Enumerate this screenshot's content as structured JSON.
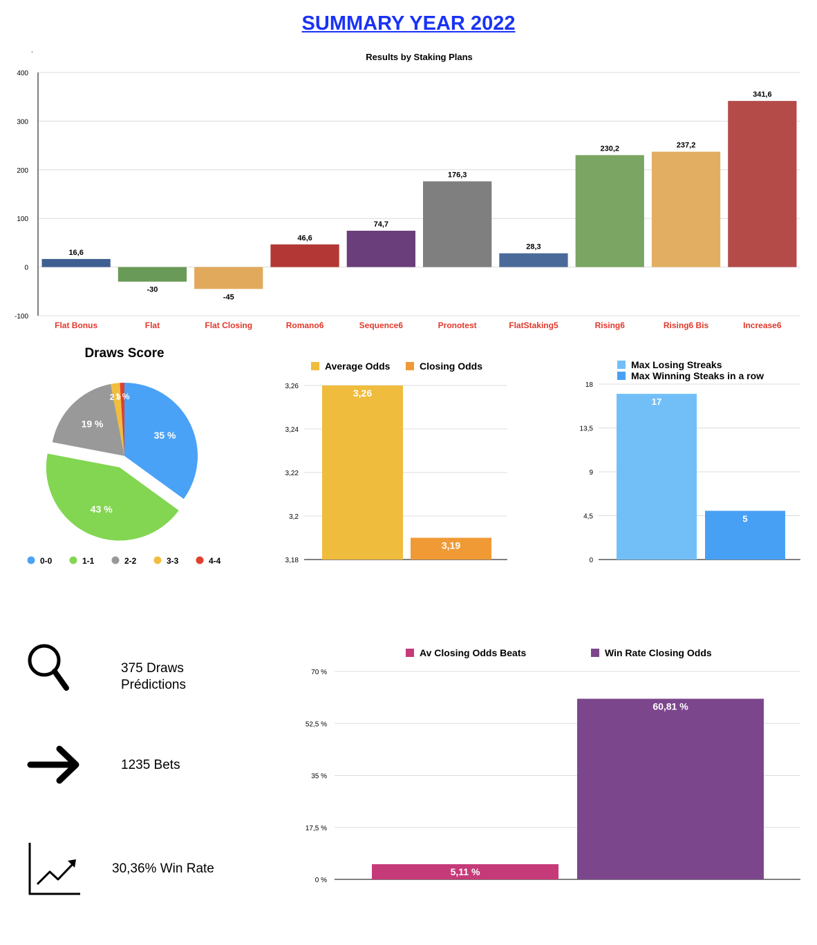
{
  "page": {
    "title": "SUMMARY YEAR 2022",
    "dot": "."
  },
  "stats": {
    "predictions_line1": "375 Draws",
    "predictions_line2": "Prédictions",
    "bets": "1235 Bets",
    "win_rate": "30,36% Win Rate",
    "icons": [
      "magnifier-icon",
      "arrow-right-icon",
      "line-chart-icon"
    ]
  },
  "chart_data": [
    {
      "id": "staking",
      "type": "bar",
      "title": "Results by Staking Plans",
      "categories": [
        "Flat Bonus",
        "Flat",
        "Flat Closing",
        "Romano6",
        "Sequence6",
        "Pronotest",
        "FlatStaking5",
        "Rising6",
        "Rising6 Bis",
        "Increase6"
      ],
      "values": [
        16.6,
        -30,
        -45,
        46.6,
        74.7,
        176.3,
        28.3,
        230.2,
        237.2,
        341.6
      ],
      "labels": [
        "16,6",
        "-30",
        "-45",
        "46,6",
        "74,7",
        "176,3",
        "28,3",
        "230,2",
        "237,2",
        "341,6"
      ],
      "colors": [
        "#3f5f92",
        "#6a9a57",
        "#e1a95b",
        "#b33835",
        "#6a3e7a",
        "#7f7f7f",
        "#4a6a9a",
        "#7ba563",
        "#e2af62",
        "#b44b49"
      ],
      "ylim": [
        -100,
        400
      ],
      "yticks": [
        "-100",
        "0",
        "100",
        "200",
        "300",
        "400"
      ],
      "ytick_values": [
        -100,
        0,
        100,
        200,
        300,
        400
      ],
      "category_label_color": "#e0382b",
      "grid": true
    },
    {
      "id": "draws",
      "type": "pie",
      "title": "Draws Score",
      "slices": [
        {
          "name": "0-0",
          "value": 35,
          "label": "35 %",
          "color": "#4aa2f6",
          "exploded": false
        },
        {
          "name": "1-1",
          "value": 43,
          "label": "43 %",
          "color": "#82d651",
          "exploded": true
        },
        {
          "name": "2-2",
          "value": 19,
          "label": "19 %",
          "color": "#999999",
          "exploded": false
        },
        {
          "name": "3-3",
          "value": 2,
          "label": "2 %",
          "color": "#f1bd3e",
          "exploded": false
        },
        {
          "name": "4-4",
          "value": 1,
          "label": "1 %",
          "color": "#e0402e",
          "exploded": false
        }
      ],
      "legend": "bottom"
    },
    {
      "id": "odds",
      "type": "bar",
      "series": [
        {
          "name": "Average Odds",
          "value": 3.26,
          "label": "3,26",
          "color": "#f0bc3e"
        },
        {
          "name": "Closing Odds",
          "value": 3.19,
          "label": "3,19",
          "color": "#f09a36"
        }
      ],
      "ylim": [
        3.18,
        3.26
      ],
      "yticks": [
        "3,18",
        "3,2",
        "3,22",
        "3,24",
        "3,26"
      ],
      "ytick_values": [
        3.18,
        3.2,
        3.22,
        3.24,
        3.26
      ],
      "legend": "top",
      "grid": true
    },
    {
      "id": "streaks",
      "type": "bar",
      "series": [
        {
          "name": "Max Losing Streaks",
          "value": 17,
          "label": "17",
          "color": "#72bff8"
        },
        {
          "name": "Max Winning Steaks in a row",
          "value": 5,
          "label": "5",
          "color": "#48a0f5"
        }
      ],
      "ylim": [
        0,
        18
      ],
      "yticks": [
        "0",
        "4,5",
        "9",
        "13,5",
        "18"
      ],
      "ytick_values": [
        0,
        4.5,
        9,
        13.5,
        18
      ],
      "legend": "top",
      "grid": true
    },
    {
      "id": "closing",
      "type": "bar",
      "series": [
        {
          "name": "Av Closing Odds Beats",
          "value": 5.11,
          "label": "5,11 %",
          "color": "#c53a78"
        },
        {
          "name": "Win Rate Closing Odds",
          "value": 60.81,
          "label": "60,81 %",
          "color": "#7c468d"
        }
      ],
      "ylim": [
        0,
        70
      ],
      "yticks": [
        "0 %",
        "17,5 %",
        "35 %",
        "52,5 %",
        "70 %"
      ],
      "ytick_values": [
        0,
        17.5,
        35,
        52.5,
        70
      ],
      "legend": "top",
      "grid": true
    }
  ]
}
